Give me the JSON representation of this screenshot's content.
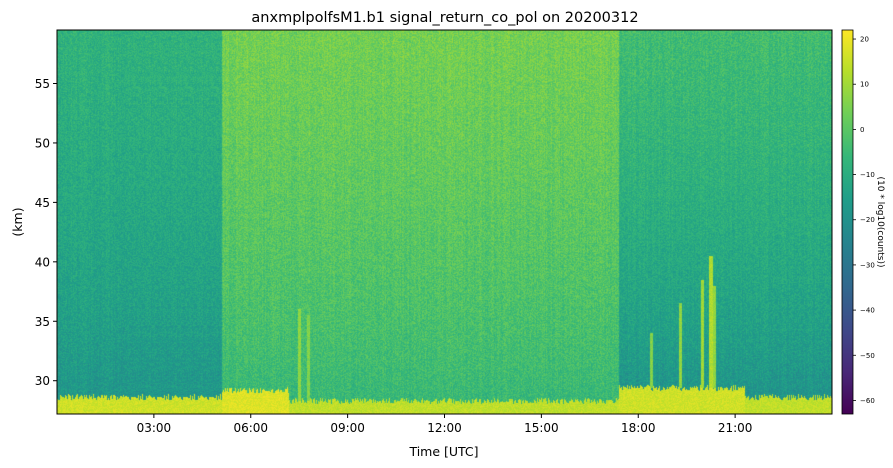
{
  "chart_data": {
    "type": "heatmap",
    "title": "anxmplpolfsM1.b1 signal_return_co_pol on 20200312",
    "xlabel": "Time [UTC]",
    "ylabel": "(km)",
    "x_unit": "hours UTC",
    "xlim": [
      0.0,
      24.0
    ],
    "ylim": [
      27.2,
      59.5
    ],
    "x_ticks": [
      3,
      6,
      9,
      12,
      15,
      18,
      21
    ],
    "x_tick_labels": [
      "03:00",
      "06:00",
      "09:00",
      "12:00",
      "15:00",
      "18:00",
      "21:00"
    ],
    "y_ticks": [
      30,
      35,
      40,
      45,
      50,
      55
    ],
    "y_tick_labels": [
      "30",
      "35",
      "40",
      "45",
      "50",
      "55"
    ],
    "colorbar": {
      "label": "(10 * log10(counts))",
      "colormap": "viridis",
      "range": [
        -63,
        22
      ],
      "ticks": [
        20,
        10,
        0,
        -10,
        -20,
        -30,
        -40,
        -50,
        -60
      ],
      "tick_labels": [
        "20",
        "10",
        "0",
        "−10",
        "−20",
        "−30",
        "−40",
        "−50",
        "−60"
      ]
    },
    "background_profile": [
      {
        "t_start": 0.0,
        "t_end": 5.1,
        "level_high_alt": -8,
        "level_low_alt": -20
      },
      {
        "t_start": 5.1,
        "t_end": 17.4,
        "level_high_alt": 4,
        "level_low_alt": -8
      },
      {
        "t_start": 17.4,
        "t_end": 24.0,
        "level_high_alt": -4,
        "level_low_alt": -22
      }
    ],
    "surface_layer": [
      {
        "t_start": 0.0,
        "t_end": 5.1,
        "top_km": 28.6,
        "level": 16
      },
      {
        "t_start": 5.1,
        "t_end": 7.2,
        "top_km": 29.2,
        "level": 18
      },
      {
        "t_start": 7.2,
        "t_end": 17.4,
        "top_km": 28.3,
        "level": 14
      },
      {
        "t_start": 17.4,
        "t_end": 21.3,
        "top_km": 29.4,
        "level": 16
      },
      {
        "t_start": 21.3,
        "t_end": 24.0,
        "top_km": 28.6,
        "level": 14
      }
    ],
    "vertical_streaks": [
      {
        "t": 7.5,
        "top_km": 36.0,
        "level": 8
      },
      {
        "t": 7.8,
        "top_km": 35.5,
        "level": 6
      },
      {
        "t": 18.4,
        "top_km": 34.0,
        "level": 6
      },
      {
        "t": 19.3,
        "top_km": 36.5,
        "level": 8
      },
      {
        "t": 20.0,
        "top_km": 38.5,
        "level": 10
      },
      {
        "t": 20.25,
        "top_km": 40.5,
        "level": 12
      },
      {
        "t": 20.35,
        "top_km": 38.0,
        "level": 8
      }
    ]
  }
}
